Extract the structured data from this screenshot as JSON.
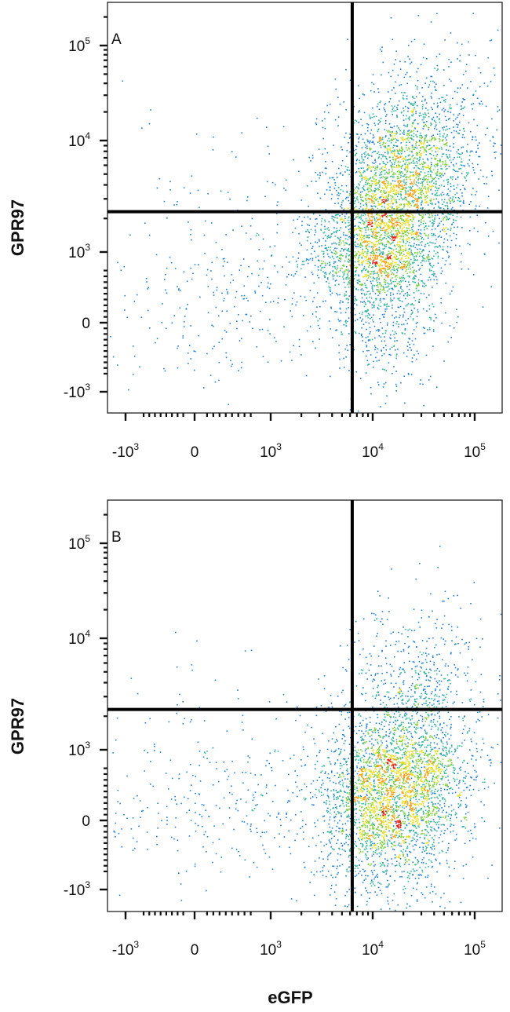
{
  "chart_data": [
    {
      "type": "scatter",
      "panel_label": "A",
      "xlabel": "",
      "ylabel": "GPR97",
      "x_scale": "biexponential",
      "y_scale": "biexponential",
      "x_ticks": [
        {
          "value": -1000,
          "base": "-10",
          "exp": "3"
        },
        {
          "value": 0,
          "base": "0",
          "exp": ""
        },
        {
          "value": 1000,
          "base": "10",
          "exp": "3"
        },
        {
          "value": 10000,
          "base": "10",
          "exp": "4"
        },
        {
          "value": 100000,
          "base": "10",
          "exp": "5"
        }
      ],
      "y_ticks": [
        {
          "value": 100000,
          "base": "10",
          "exp": "5"
        },
        {
          "value": 10000,
          "base": "10",
          "exp": "4"
        },
        {
          "value": 1000,
          "base": "10",
          "exp": "3"
        },
        {
          "value": 0,
          "base": "0",
          "exp": ""
        },
        {
          "value": -1000,
          "base": "-10",
          "exp": "3"
        }
      ],
      "quadrant_gate": {
        "x": 6300,
        "y": 2300
      },
      "populations": [
        {
          "center": [
            16000,
            2600
          ],
          "spread": [
            0.18,
            0.2
          ],
          "count": 3200,
          "tilt": 0.5
        },
        {
          "center": [
            13000,
            800
          ],
          "spread": [
            0.12,
            0.35
          ],
          "count": 900,
          "tilt": 0.2
        },
        {
          "center": [
            25000,
            15000
          ],
          "spread": [
            0.2,
            0.25
          ],
          "count": 350,
          "tilt": 0.6
        },
        {
          "center": [
            600,
            600
          ],
          "spread": [
            0.5,
            0.35
          ],
          "count": 380,
          "tilt": 0.0
        }
      ]
    },
    {
      "type": "scatter",
      "panel_label": "B",
      "xlabel": "eGFP",
      "ylabel": "GPR97",
      "x_scale": "biexponential",
      "y_scale": "biexponential",
      "x_ticks": [
        {
          "value": -1000,
          "base": "-10",
          "exp": "3"
        },
        {
          "value": 0,
          "base": "0",
          "exp": ""
        },
        {
          "value": 1000,
          "base": "10",
          "exp": "3"
        },
        {
          "value": 10000,
          "base": "10",
          "exp": "4"
        },
        {
          "value": 100000,
          "base": "10",
          "exp": "5"
        }
      ],
      "y_ticks": [
        {
          "value": 100000,
          "base": "10",
          "exp": "5"
        },
        {
          "value": 10000,
          "base": "10",
          "exp": "4"
        },
        {
          "value": 1000,
          "base": "10",
          "exp": "3"
        },
        {
          "value": 0,
          "base": "0",
          "exp": ""
        },
        {
          "value": -1000,
          "base": "-10",
          "exp": "3"
        }
      ],
      "quadrant_gate": {
        "x": 6300,
        "y": 2300
      },
      "populations": [
        {
          "center": [
            17000,
            650
          ],
          "spread": [
            0.17,
            0.3
          ],
          "count": 3000,
          "tilt": 0.45
        },
        {
          "center": [
            15000,
            150
          ],
          "spread": [
            0.14,
            0.35
          ],
          "count": 700,
          "tilt": 0.1
        },
        {
          "center": [
            28000,
            2500
          ],
          "spread": [
            0.15,
            0.2
          ],
          "count": 200,
          "tilt": 0.3
        },
        {
          "center": [
            600,
            400
          ],
          "spread": [
            0.5,
            0.3
          ],
          "count": 400,
          "tilt": 0.0
        }
      ]
    }
  ]
}
